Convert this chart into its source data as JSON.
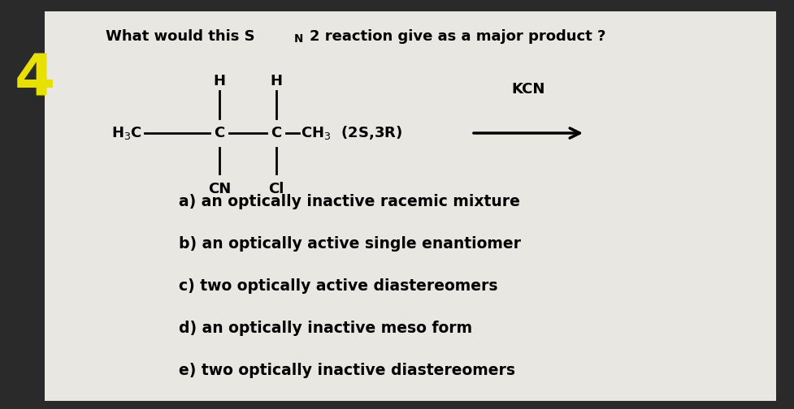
{
  "bg_outer": "#2a2a2a",
  "bg_card": "#e8e7e2",
  "number_color": "#e8e000",
  "number_fontsize": 52,
  "title_fontsize": 13,
  "struct_fontsize": 13,
  "options_fontsize": 13.5,
  "options": [
    "a) an optically inactive racemic mixture",
    "b) an optically active single enantiomer",
    "c) two optically active diastereomers",
    "d) an optically inactive meso form",
    "e) two optically inactive diastereomers"
  ]
}
